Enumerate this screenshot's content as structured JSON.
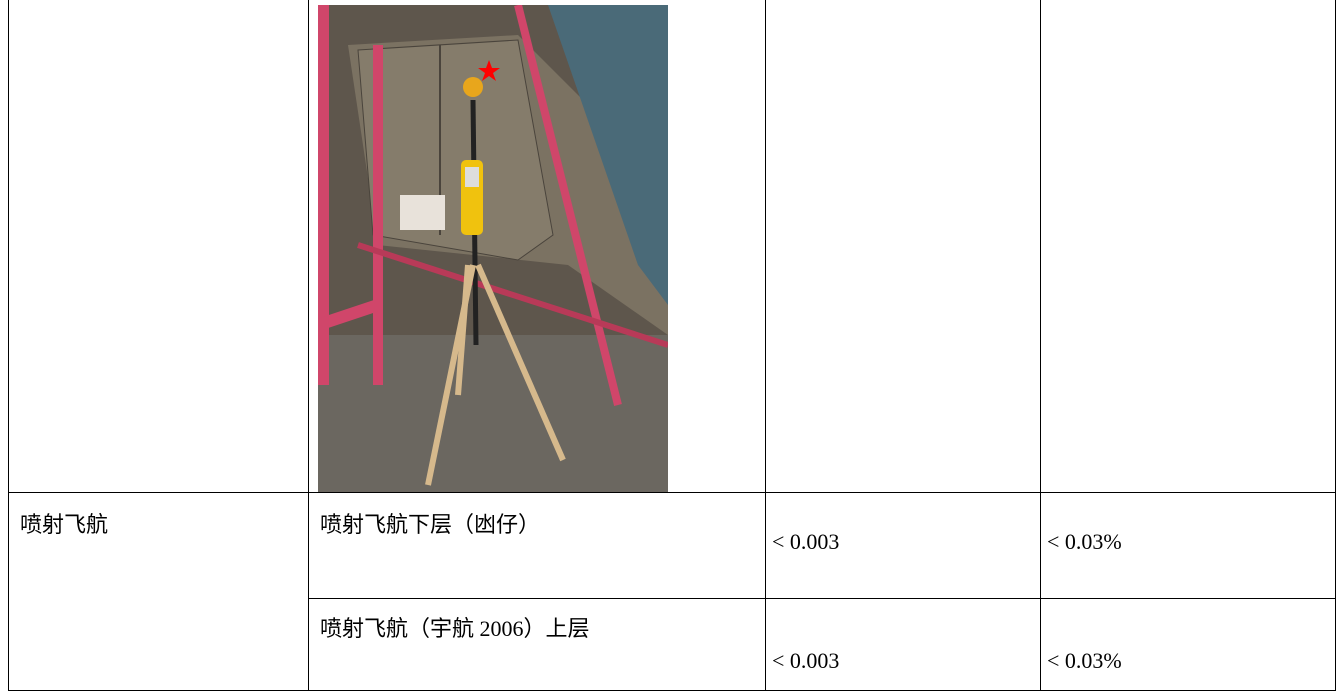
{
  "table": {
    "rows": [
      [
        "",
        "",
        "",
        ""
      ],
      [
        "喷射飞航",
        "喷射飞航下层（凼仔）",
        "< 0.003",
        "< 0.03%"
      ],
      [
        "",
        "喷射飞航（宇航 2006）上层",
        "< 0.003",
        "< 0.03%"
      ]
    ]
  }
}
